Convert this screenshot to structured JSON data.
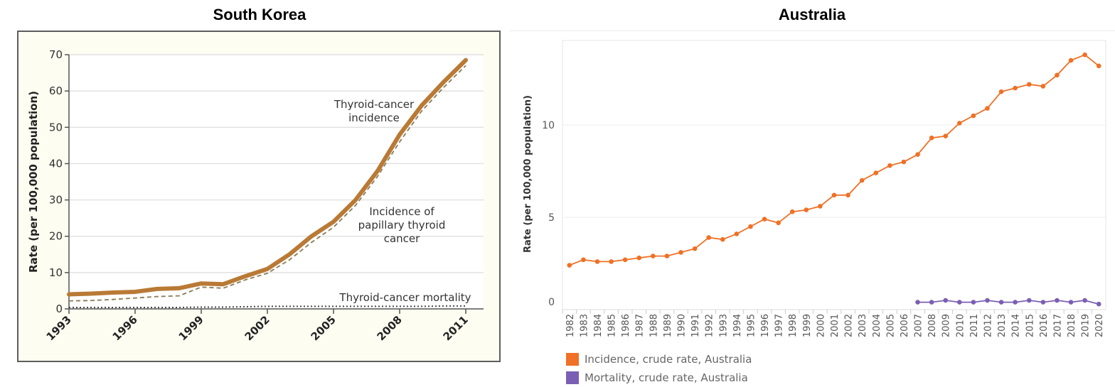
{
  "chart_data": [
    {
      "type": "line",
      "title": "South Korea",
      "xlabel": "",
      "ylabel": "Rate (per 100,000 population)",
      "xlim": [
        1993,
        2011
      ],
      "ylim": [
        0,
        70
      ],
      "grid": true,
      "x_ticks": [
        "1993",
        "1996",
        "1999",
        "2002",
        "2005",
        "2008",
        "2011"
      ],
      "y_ticks": [
        "0",
        "10",
        "20",
        "30",
        "40",
        "50",
        "60",
        "70"
      ],
      "x": [
        1993,
        1994,
        1995,
        1996,
        1997,
        1998,
        1999,
        2000,
        2001,
        2002,
        2003,
        2004,
        2005,
        2006,
        2007,
        2008,
        2009,
        2010,
        2011
      ],
      "series": [
        {
          "name": "Thyroid-cancer incidence",
          "style": "solid-thick",
          "color": "#b97a35",
          "values": [
            4.0,
            4.2,
            4.5,
            4.7,
            5.5,
            5.7,
            7.0,
            6.8,
            9.0,
            11.0,
            15.0,
            20.0,
            24.0,
            30.0,
            38.0,
            48.0,
            56.0,
            62.5,
            68.5
          ]
        },
        {
          "name": "Incidence of papillary thyroid cancer",
          "style": "dashed",
          "color": "#8a7a55",
          "values": [
            2.2,
            2.3,
            2.6,
            3.0,
            3.4,
            3.6,
            6.0,
            5.7,
            8.0,
            9.8,
            13.5,
            18.3,
            22.5,
            28.5,
            36.5,
            46.0,
            54.5,
            61.0,
            67.0
          ]
        },
        {
          "name": "Thyroid-cancer mortality",
          "style": "dotted",
          "color": "#4a4a4a",
          "values": [
            0.4,
            0.4,
            0.4,
            0.4,
            0.4,
            0.4,
            0.5,
            0.5,
            0.6,
            0.7,
            0.7,
            0.7,
            0.7,
            0.7,
            0.7,
            0.7,
            0.7,
            0.8,
            0.8
          ]
        }
      ],
      "annotations": [
        {
          "text": [
            "Thyroid-cancer",
            "incidence"
          ],
          "series": "Thyroid-cancer incidence"
        },
        {
          "text": [
            "Incidence of",
            "papillary thyroid",
            "cancer"
          ],
          "series": "Incidence of papillary thyroid cancer"
        },
        {
          "text": [
            "Thyroid-cancer mortality"
          ],
          "series": "Thyroid-cancer mortality"
        }
      ]
    },
    {
      "type": "line",
      "title": "Australia",
      "xlabel": "",
      "ylabel": "Rate (per 100,000 population)",
      "ylim": [
        0,
        14.5
      ],
      "grid": true,
      "y_ticks": [
        "0",
        "5",
        "10"
      ],
      "x": [
        "1982",
        "1983",
        "1984",
        "1985",
        "1986",
        "1987",
        "1988",
        "1989",
        "1990",
        "1991",
        "1992",
        "1993",
        "1994",
        "1995",
        "1996",
        "1997",
        "1998",
        "1999",
        "2000",
        "2001",
        "2002",
        "2003",
        "2004",
        "2005",
        "2006",
        "2007",
        "2008",
        "2009",
        "2010",
        "2011",
        "2012",
        "2013",
        "2014",
        "2015",
        "2016",
        "2017",
        "2018",
        "2019",
        "2020"
      ],
      "legend_position": "bottom-left",
      "series": [
        {
          "name": "Incidence, crude rate, Australia",
          "color": "#ef7026",
          "values": [
            2.4,
            2.7,
            2.6,
            2.6,
            2.7,
            2.8,
            2.9,
            2.9,
            3.1,
            3.3,
            3.9,
            3.8,
            4.1,
            4.5,
            4.9,
            4.7,
            5.3,
            5.4,
            5.6,
            6.2,
            6.2,
            7.0,
            7.4,
            7.8,
            8.0,
            8.4,
            9.3,
            9.4,
            10.1,
            10.5,
            10.9,
            11.8,
            12.0,
            12.2,
            12.1,
            12.7,
            13.5,
            13.8,
            13.2
          ]
        },
        {
          "name": "Mortality, crude rate, Australia",
          "color": "#7b5fb4",
          "values": [
            null,
            null,
            null,
            null,
            null,
            null,
            null,
            null,
            null,
            null,
            null,
            null,
            null,
            null,
            null,
            null,
            null,
            null,
            null,
            null,
            null,
            null,
            null,
            null,
            null,
            0.4,
            0.4,
            0.5,
            0.4,
            0.4,
            0.5,
            0.4,
            0.4,
            0.5,
            0.4,
            0.5,
            0.4,
            0.5,
            0.3
          ]
        }
      ]
    }
  ]
}
